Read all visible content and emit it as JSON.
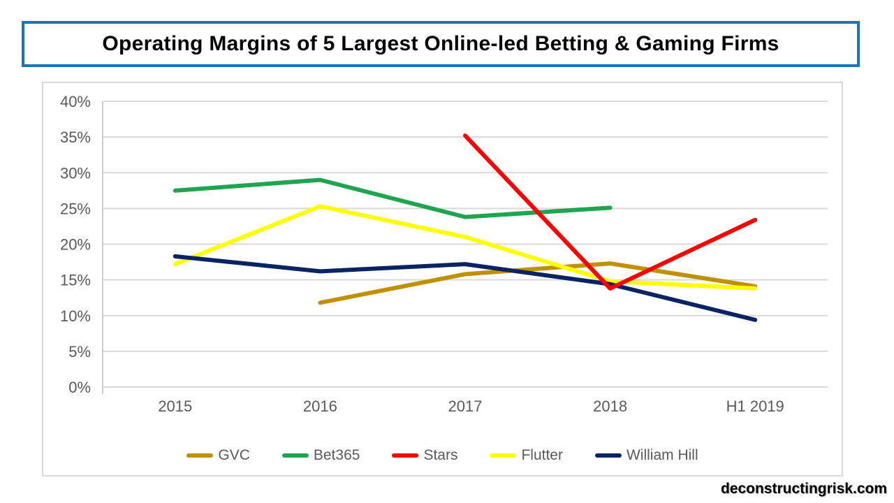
{
  "page": {
    "title": "Operating Margins of 5 Largest Online-led Betting & Gaming Firms",
    "watermark": "deconstructingrisk.com"
  },
  "theme": {
    "title_border_color": "#1b75bc",
    "chart_border_color": "#d9d9d9",
    "gridline_color": "#d9d9d9",
    "axis_line_color": "#bfbfbf",
    "axis_text_color": "#595959",
    "background_color": "#ffffff"
  },
  "chart_data": {
    "type": "line",
    "title": "Operating Margins of 5 Largest Online-led Betting & Gaming Firms",
    "categories": [
      "2015",
      "2016",
      "2017",
      "2018",
      "H1 2019"
    ],
    "xlabel": "",
    "ylabel": "",
    "ylim": [
      0,
      40
    ],
    "y_tick_step": 5,
    "y_tick_labels": [
      "0%",
      "5%",
      "10%",
      "15%",
      "20%",
      "25%",
      "30%",
      "35%",
      "40%"
    ],
    "grid": true,
    "legend_position": "bottom",
    "series": [
      {
        "name": "GVC",
        "color": "#BF9000",
        "values": [
          null,
          11.8,
          15.8,
          17.3,
          14.1
        ]
      },
      {
        "name": "Bet365",
        "color": "#1FA44F",
        "values": [
          27.5,
          29.0,
          23.8,
          25.1,
          null
        ]
      },
      {
        "name": "Stars",
        "color": "#FF0000",
        "values": [
          null,
          null,
          35.2,
          13.8,
          23.4
        ]
      },
      {
        "name": "Flutter",
        "color": "#FFFF00",
        "values": [
          17.2,
          25.3,
          21.0,
          14.8,
          13.8
        ]
      },
      {
        "name": "William Hill",
        "color": "#0A2463",
        "values": [
          18.3,
          16.2,
          17.2,
          14.4,
          9.4
        ]
      }
    ]
  }
}
